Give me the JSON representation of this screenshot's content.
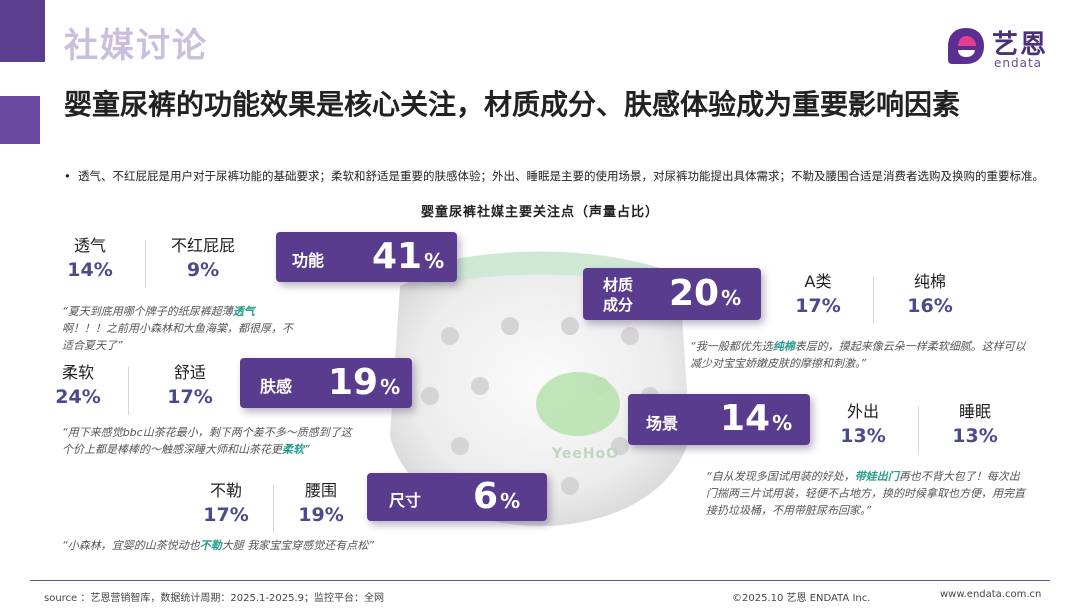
{
  "header": {
    "section_title": "社媒讨论",
    "logo_cn": "艺恩",
    "logo_en": "endata"
  },
  "headline": "婴童尿裤的功能效果是核心关注，材质成分、肤感体验成为重要影响因素",
  "description": {
    "bullet": "•",
    "text": "透气、不红屁屁是用户对于尿裤功能的基础要求；柔软和舒适是重要的肤感体验；外出、睡眠是主要的使用场景，对尿裤功能提出具体需求；不勒及腰围合适是消费者选购及换购的重要标准。"
  },
  "chart_data": {
    "type": "table",
    "title": "婴童尿裤社媒主要关注点（声量占比）",
    "categories": [
      {
        "name": "功能",
        "value": "41",
        "unit": "%",
        "subs": [
          {
            "name": "透气",
            "value": "14%"
          },
          {
            "name": "不红屁屁",
            "value": "9%"
          }
        ]
      },
      {
        "name": "材质成分",
        "name_line1": "材质",
        "name_line2": "成分",
        "value": "20",
        "unit": "%",
        "subs": [
          {
            "name": "A类",
            "value": "17%"
          },
          {
            "name": "纯棉",
            "value": "16%"
          }
        ]
      },
      {
        "name": "肤感",
        "value": "19",
        "unit": "%",
        "subs": [
          {
            "name": "柔软",
            "value": "24%"
          },
          {
            "name": "舒适",
            "value": "17%"
          }
        ]
      },
      {
        "name": "场景",
        "value": "14",
        "unit": "%",
        "subs": [
          {
            "name": "外出",
            "value": "13%"
          },
          {
            "name": "睡眠",
            "value": "13%"
          }
        ]
      },
      {
        "name": "尺寸",
        "value": "6",
        "unit": "%",
        "subs": [
          {
            "name": "不勒",
            "value": "17%"
          },
          {
            "name": "腰围",
            "value": "19%"
          }
        ]
      }
    ]
  },
  "quotes": {
    "q1": {
      "a": "“夏天到底用哪个牌子的纸尿裤超薄",
      "hl": "透气",
      "b": "啊！！！之前用小森林和大鱼海棠，都很厚，不适合夏天了”"
    },
    "q2": {
      "a": "“我一般都优先选",
      "hl": "纯棉",
      "b": "表层的，摸起来像云朵一样柔软细腻。这样可以减少对宝宝娇嫩皮肤的摩擦和刺激。”"
    },
    "q3": {
      "a": "“用下来感觉bbc山茶花最小，剩下两个差不多～质感到了这个价上都是棒棒的～触感深睡大师和山茶花更",
      "hl": "柔软",
      "b": "”"
    },
    "q4": {
      "a": "“自从发现多国试用装的好处，",
      "hl": "带娃出门",
      "b": "再也不背大包了！每次出门揣两三片试用装，轻便不占地方，换的时候拿取也方便，用完直接扔垃圾桶，不用带脏尿布回家。”"
    },
    "q5": {
      "a": "“小森林，宜婴的山茶悦动也",
      "hl": "不勒",
      "b": "大腿 我家宝宝穿感觉还有点松”"
    }
  },
  "diaper_brand": "YeeHoO",
  "colors": {
    "accent": "#5a3c8e",
    "value_text": "#4a4a8c",
    "highlight": "#2a9c8c",
    "section_title": "#c9bfdc"
  },
  "footer": {
    "source": "source ：艺恩营销智库，数据统计周期：2025.1-2025.9；监控平台：全网",
    "copyright": "©2025.10  艺恩 ENDATA Inc.",
    "url": "www.endata.com.cn"
  }
}
